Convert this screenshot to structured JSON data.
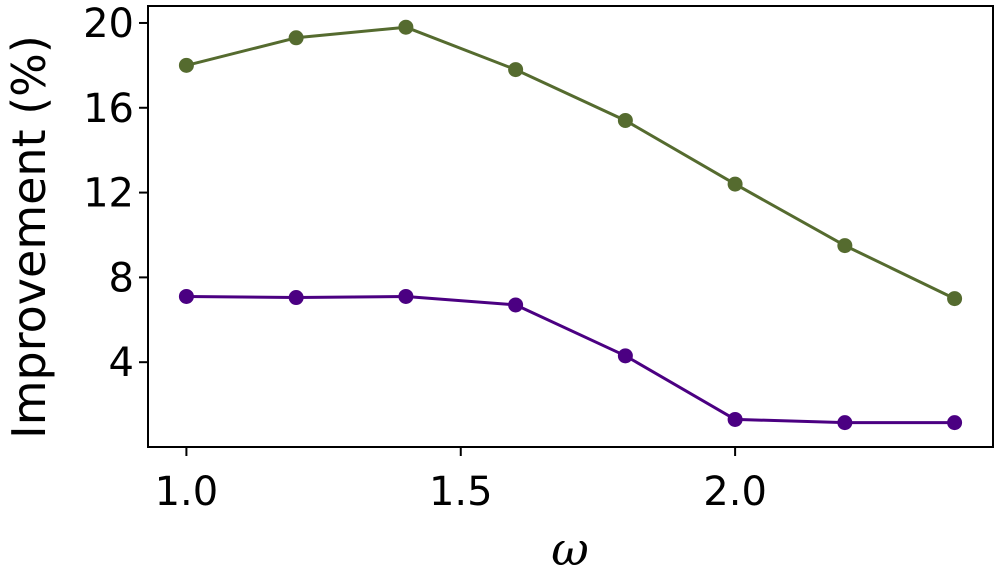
{
  "chart_data": {
    "type": "line",
    "title": "",
    "xlabel": "ω",
    "ylabel": "Improvement (%)",
    "xlim": [
      0.93,
      2.47
    ],
    "ylim": [
      0,
      20.8
    ],
    "xticks": [
      1.0,
      1.5,
      2.0
    ],
    "xtick_labels": [
      "1.0",
      "1.5",
      "2.0"
    ],
    "yticks": [
      4,
      8,
      12,
      16,
      20
    ],
    "ytick_labels": [
      "4",
      "8",
      "12",
      "16",
      "20"
    ],
    "grid": false,
    "legend": "none",
    "x": [
      1.0,
      1.2,
      1.4,
      1.6,
      1.8,
      2.0,
      2.2,
      2.4
    ],
    "series": [
      {
        "color": "#556B2F",
        "values": [
          18.0,
          19.3,
          19.8,
          17.8,
          15.4,
          12.4,
          9.5,
          7.0
        ]
      },
      {
        "color": "#4B0082",
        "values": [
          7.1,
          7.05,
          7.1,
          6.7,
          4.3,
          1.3,
          1.15,
          1.15
        ]
      }
    ]
  }
}
